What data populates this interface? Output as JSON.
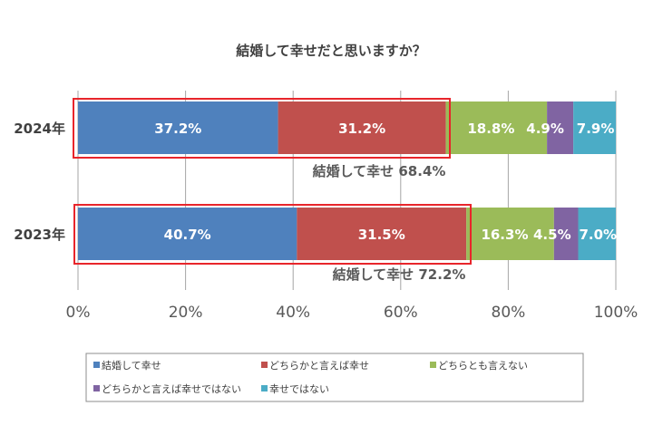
{
  "chart_data": {
    "type": "bar",
    "orientation": "horizontal",
    "stacked": true,
    "title": "結婚して幸せだと思いますか？",
    "categories": [
      "2024年",
      "2023年"
    ],
    "series": [
      {
        "name": "結婚して幸せ",
        "color": "#4F81BD",
        "values": [
          37.2,
          40.7
        ],
        "labels": [
          "37.2%",
          "40.7%"
        ]
      },
      {
        "name": "どちらかと言えば幸せ",
        "color": "#C0504D",
        "values": [
          31.2,
          31.5
        ],
        "labels": [
          "31.2%",
          "31.5%"
        ]
      },
      {
        "name": "どちらとも言えない",
        "color": "#9BBB59",
        "values": [
          18.8,
          16.3
        ],
        "labels": [
          "18.8%",
          "16.3%"
        ]
      },
      {
        "name": "どちらかと言えば幸せではない",
        "color": "#8064A2",
        "values": [
          4.9,
          4.5
        ],
        "labels": [
          "4.9%",
          "4.5%"
        ]
      },
      {
        "name": "幸せではない",
        "color": "#4BACC6",
        "values": [
          7.9,
          7.0
        ],
        "labels": [
          "7.9%",
          "7.0%"
        ]
      }
    ],
    "xlim": [
      0,
      100
    ],
    "xticks": [
      "0%",
      "20%",
      "40%",
      "60%",
      "80%",
      "100%"
    ],
    "grid": true,
    "legend": "bottom",
    "annotations": [
      {
        "text": "結婚して幸せ 68.4%",
        "category": "2024年",
        "highlight_color": "#E8252B"
      },
      {
        "text": "結婚して幸せ 72.2%",
        "category": "2023年",
        "highlight_color": "#E8252B"
      }
    ]
  }
}
